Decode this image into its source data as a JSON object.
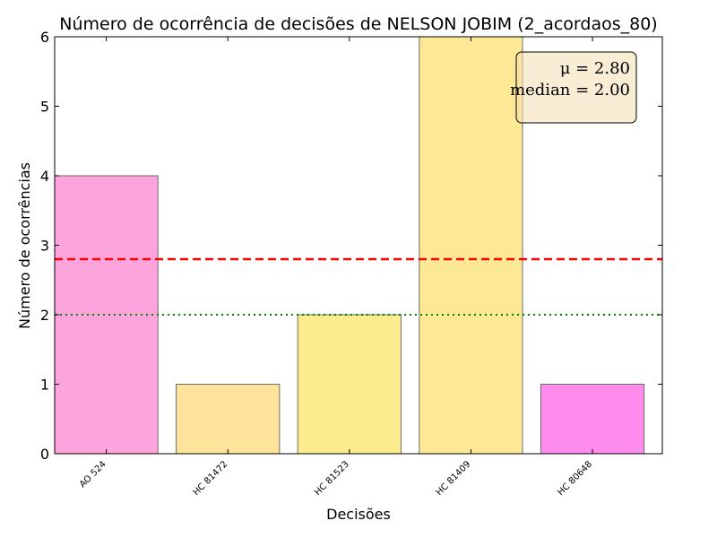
{
  "chart_data": {
    "type": "bar",
    "title": "Número de ocorrência de decisões de NELSON JOBIM (2_acordaos_80)",
    "xlabel": "Decisões",
    "ylabel": "Número de ocorrências",
    "categories": [
      "AO 524",
      "HC 81472",
      "HC 81523",
      "HC 81409",
      "HC 80648"
    ],
    "values": [
      4,
      1,
      2,
      6,
      1
    ],
    "bar_colors": [
      "#fda4dc",
      "#fde49a",
      "#fdec8e",
      "#fde896",
      "#fd8ced"
    ],
    "ylim": [
      0,
      6
    ],
    "yticks": [
      0,
      1,
      2,
      3,
      4,
      5,
      6
    ],
    "mean": 2.8,
    "median": 2.0,
    "mean_line_color": "#ff0000",
    "median_line_color": "#008000",
    "stats_box": {
      "mean_text": "μ = 2.80",
      "median_text": "median = 2.00",
      "placement": "top-right",
      "background": "#f5deb3"
    },
    "grid": false
  }
}
